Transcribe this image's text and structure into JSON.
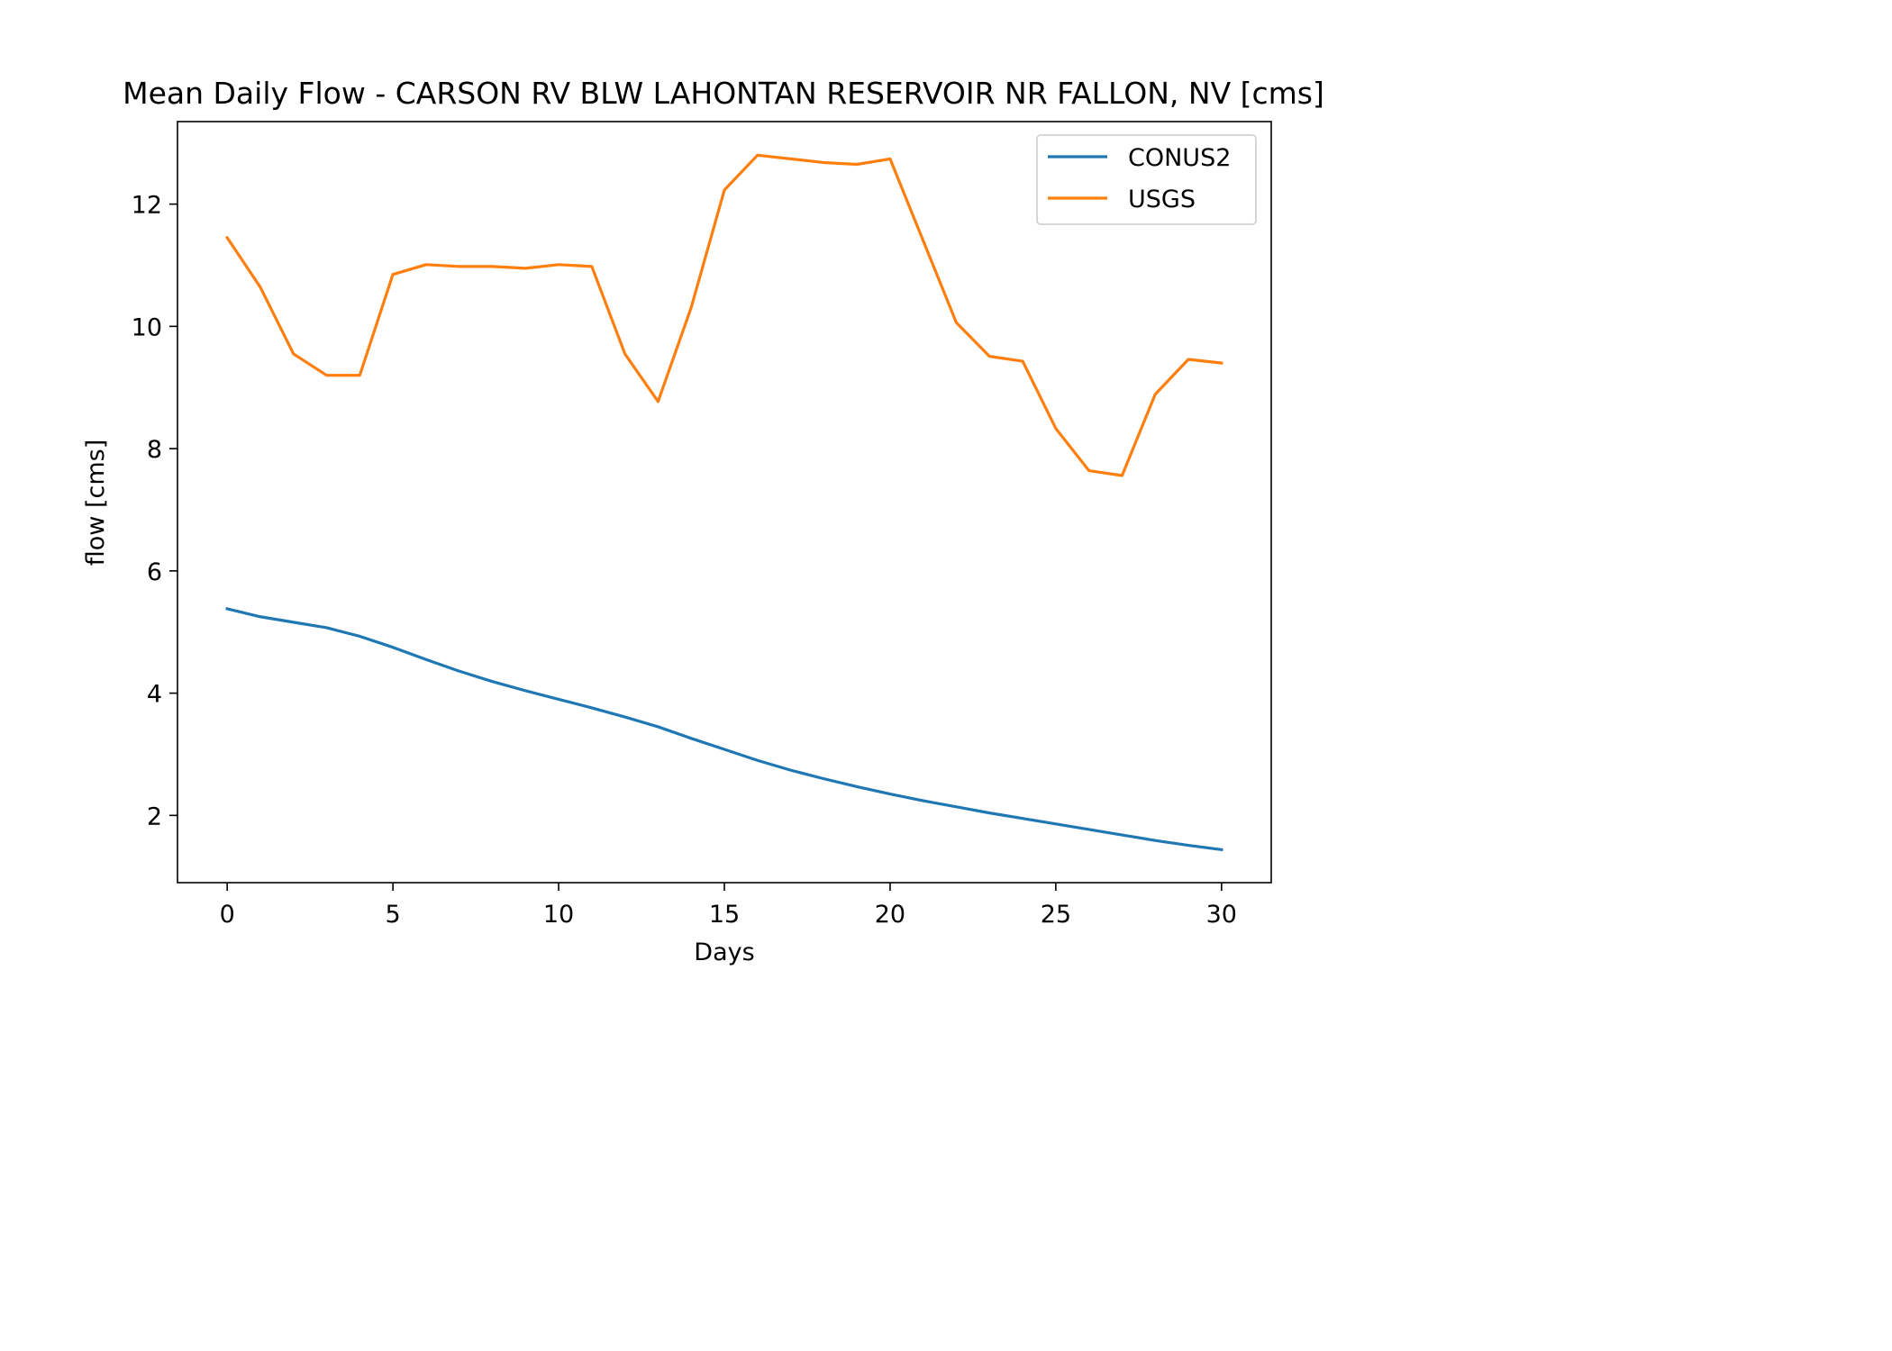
{
  "chart_data": {
    "type": "line",
    "title": "Mean Daily Flow - CARSON RV BLW LAHONTAN RESERVOIR NR FALLON, NV [cms]",
    "xlabel": "Days",
    "ylabel": "flow [cms]",
    "xlim": [
      -1.5,
      31.5
    ],
    "ylim": [
      0.9,
      13.35
    ],
    "x_ticks": [
      0,
      5,
      10,
      15,
      20,
      25,
      30
    ],
    "y_ticks": [
      2,
      4,
      6,
      8,
      10,
      12
    ],
    "x": [
      0,
      1,
      2,
      3,
      4,
      5,
      6,
      7,
      8,
      9,
      10,
      11,
      12,
      13,
      14,
      15,
      16,
      17,
      18,
      19,
      20,
      21,
      22,
      23,
      24,
      25,
      26,
      27,
      28,
      29,
      30
    ],
    "series": [
      {
        "name": "CONUS2",
        "color": "#1f77b4",
        "values": [
          5.38,
          5.25,
          5.16,
          5.07,
          4.93,
          4.75,
          4.55,
          4.36,
          4.19,
          4.04,
          3.9,
          3.76,
          3.61,
          3.45,
          3.26,
          3.08,
          2.9,
          2.74,
          2.6,
          2.47,
          2.35,
          2.24,
          2.14,
          2.04,
          1.95,
          1.86,
          1.77,
          1.68,
          1.59,
          1.51,
          1.44
        ]
      },
      {
        "name": "USGS",
        "color": "#ff7f0e",
        "values": [
          11.45,
          10.64,
          9.55,
          9.2,
          9.2,
          10.85,
          11.01,
          10.98,
          10.98,
          10.95,
          11.01,
          10.98,
          9.55,
          8.77,
          10.31,
          12.23,
          12.8,
          12.74,
          12.68,
          12.65,
          12.74,
          11.4,
          10.06,
          9.51,
          9.43,
          8.33,
          7.64,
          7.56,
          8.89,
          9.46,
          9.4
        ]
      }
    ],
    "grid": false,
    "legend": "top-right"
  }
}
